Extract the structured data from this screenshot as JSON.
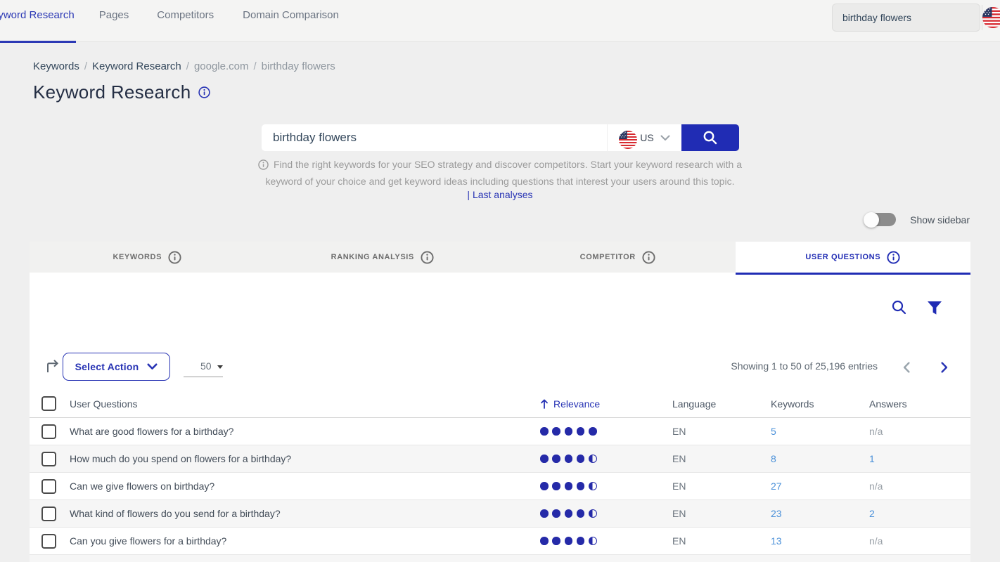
{
  "nav": {
    "items": [
      {
        "label": "Keyword Research",
        "active": true
      },
      {
        "label": "Pages",
        "active": false
      },
      {
        "label": "Competitors",
        "active": false
      },
      {
        "label": "Domain Comparison",
        "active": false
      }
    ],
    "topbar_search_value": "birthday flowers",
    "topbar_flag": "us-flag"
  },
  "breadcrumb": {
    "separator": "/",
    "items": [
      {
        "label": "Keywords",
        "emphasis": true
      },
      {
        "label": "Keyword Research",
        "emphasis": true
      },
      {
        "label": "google.com",
        "emphasis": false
      },
      {
        "label": "birthday flowers",
        "emphasis": false
      }
    ]
  },
  "page": {
    "title": "Keyword Research"
  },
  "search": {
    "value": "birthday flowers",
    "country": "US",
    "button": "search",
    "info_line1": "Find the right keywords for your SEO strategy and discover competitors. Start your keyword research with a",
    "info_line2": "keyword of your choice and get keyword ideas including questions that interest your users around this topic.",
    "last_analyses": "| Last analyses"
  },
  "sidebar_toggle": {
    "label": "Show sidebar",
    "state": "off"
  },
  "tabs": [
    {
      "label": "Keywords",
      "active": false
    },
    {
      "label": "Ranking analysis",
      "active": false
    },
    {
      "label": "Competitor",
      "active": false
    },
    {
      "label": "User questions",
      "active": true
    }
  ],
  "toolbar": {
    "select_action_label": "Select Action",
    "page_size": "50",
    "showing_text": "Showing 1 to 50 of 25,196 entries"
  },
  "table": {
    "columns": {
      "questions": "User Questions",
      "relevance": "Relevance",
      "language": "Language",
      "keywords": "Keywords",
      "answers": "Answers"
    },
    "sort": {
      "column": "Relevance",
      "direction": "ascending"
    },
    "relevance_scale": 5,
    "rows": [
      {
        "question": "What are good flowers for a birthday?",
        "relevance": 5,
        "language": "EN",
        "keywords": "5",
        "answers": "n/a"
      },
      {
        "question": "How much do you spend on flowers for a birthday?",
        "relevance": 4.5,
        "language": "EN",
        "keywords": "8",
        "answers": "1"
      },
      {
        "question": "Can we give flowers on birthday?",
        "relevance": 4.5,
        "language": "EN",
        "keywords": "27",
        "answers": "n/a"
      },
      {
        "question": "What kind of flowers do you send for a birthday?",
        "relevance": 4.5,
        "language": "EN",
        "keywords": "23",
        "answers": "2"
      },
      {
        "question": "Can you give flowers for a birthday?",
        "relevance": 4.5,
        "language": "EN",
        "keywords": "13",
        "answers": "n/a"
      }
    ]
  },
  "colors": {
    "brand_blue": "#202cb4",
    "link_blue": "#4a90d9",
    "page_bg": "#efefef",
    "panel_bg": "#ffffff",
    "muted_text": "#9b9b9b",
    "dark_text": "#33475b"
  }
}
